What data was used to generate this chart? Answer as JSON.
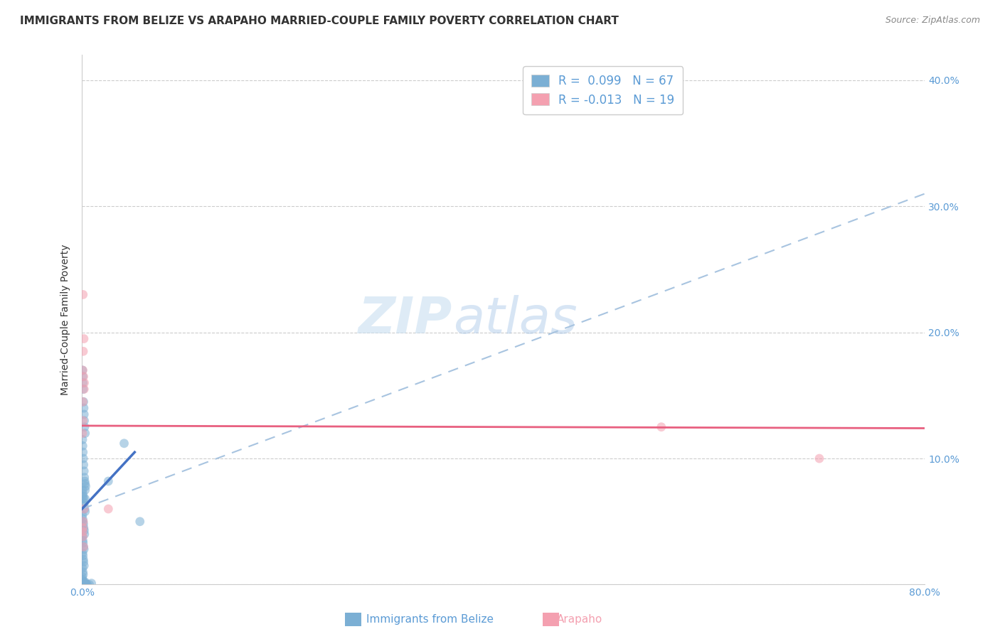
{
  "title": "IMMIGRANTS FROM BELIZE VS ARAPAHO MARRIED-COUPLE FAMILY POVERTY CORRELATION CHART",
  "source": "Source: ZipAtlas.com",
  "ylabel": "Married-Couple Family Poverty",
  "watermark_zip": "ZIP",
  "watermark_atlas": "atlas",
  "legend_r1": "R =  0.099",
  "legend_n1": "N = 67",
  "legend_r2": "R = -0.013",
  "legend_n2": "N = 19",
  "xlim": [
    0.0,
    0.8
  ],
  "ylim": [
    0.0,
    0.42
  ],
  "xticks": [
    0.0,
    0.1,
    0.2,
    0.3,
    0.4,
    0.5,
    0.6,
    0.7,
    0.8
  ],
  "yticks": [
    0.0,
    0.1,
    0.2,
    0.3,
    0.4
  ],
  "ytick_labels_right": [
    "",
    "10.0%",
    "20.0%",
    "30.0%",
    "40.0%"
  ],
  "xtick_labels": [
    "0.0%",
    "",
    "",
    "",
    "",
    "",
    "",
    "",
    "80.0%"
  ],
  "blue_scatter_x": [
    0.0005,
    0.0008,
    0.001,
    0.0012,
    0.0015,
    0.0018,
    0.002,
    0.0022,
    0.0025,
    0.003,
    0.0005,
    0.0007,
    0.001,
    0.0013,
    0.0016,
    0.002,
    0.0023,
    0.0026,
    0.003,
    0.0035,
    0.0006,
    0.0009,
    0.0012,
    0.0015,
    0.0018,
    0.002,
    0.0025,
    0.003,
    0.0004,
    0.0007,
    0.001,
    0.0014,
    0.0017,
    0.0021,
    0.0024,
    0.0005,
    0.0008,
    0.0011,
    0.0015,
    0.0019,
    0.0006,
    0.001,
    0.0013,
    0.0016,
    0.002,
    0.0005,
    0.0009,
    0.0012,
    0.0004,
    0.0006,
    0.0008,
    0.001,
    0.0014,
    0.0018,
    0.0022,
    0.0026,
    0.003,
    0.0035,
    0.004,
    0.005,
    0.007,
    0.009,
    0.025,
    0.04,
    0.055,
    0.003,
    0.003
  ],
  "blue_scatter_y": [
    0.17,
    0.165,
    0.16,
    0.155,
    0.145,
    0.14,
    0.135,
    0.13,
    0.125,
    0.12,
    0.115,
    0.11,
    0.105,
    0.1,
    0.095,
    0.09,
    0.085,
    0.082,
    0.08,
    0.078,
    0.075,
    0.072,
    0.07,
    0.068,
    0.065,
    0.063,
    0.06,
    0.058,
    0.055,
    0.052,
    0.05,
    0.048,
    0.045,
    0.043,
    0.04,
    0.038,
    0.035,
    0.033,
    0.03,
    0.028,
    0.025,
    0.023,
    0.02,
    0.018,
    0.015,
    0.013,
    0.01,
    0.008,
    0.006,
    0.004,
    0.003,
    0.002,
    0.001,
    0.001,
    0.0,
    0.001,
    0.002,
    0.001,
    0.0,
    0.0,
    0.0,
    0.001,
    0.082,
    0.112,
    0.05,
    0.075,
    0.068
  ],
  "pink_scatter_x": [
    0.001,
    0.0015,
    0.002,
    0.0008,
    0.0012,
    0.001,
    0.0018,
    0.0005,
    0.0022,
    0.0009,
    0.001,
    0.0015,
    0.0008,
    0.002,
    0.0012,
    0.0006,
    0.55,
    0.7,
    0.025
  ],
  "pink_scatter_y": [
    0.23,
    0.165,
    0.155,
    0.17,
    0.185,
    0.13,
    0.195,
    0.12,
    0.16,
    0.145,
    0.045,
    0.03,
    0.038,
    0.06,
    0.05,
    0.042,
    0.125,
    0.1,
    0.06
  ],
  "blue_solid_line_x": [
    0.0,
    0.05
  ],
  "blue_solid_line_y": [
    0.06,
    0.105
  ],
  "blue_dashed_line_x": [
    0.0,
    0.8
  ],
  "blue_dashed_line_y": [
    0.06,
    0.31
  ],
  "pink_line_x": [
    0.0,
    0.8
  ],
  "pink_line_y": [
    0.126,
    0.124
  ],
  "scatter_alpha": 0.55,
  "scatter_size": 85,
  "blue_color": "#7bafd4",
  "blue_solid_color": "#4472C4",
  "blue_dashed_color": "#a8c4e0",
  "pink_color": "#f4a0b0",
  "pink_line_color": "#e86080",
  "grid_color": "#cccccc",
  "axis_tick_color": "#5b9bd5",
  "title_color": "#333333",
  "title_fontsize": 11,
  "ylabel_fontsize": 10,
  "tick_fontsize": 10,
  "legend_fontsize": 12,
  "source_color": "#888888"
}
